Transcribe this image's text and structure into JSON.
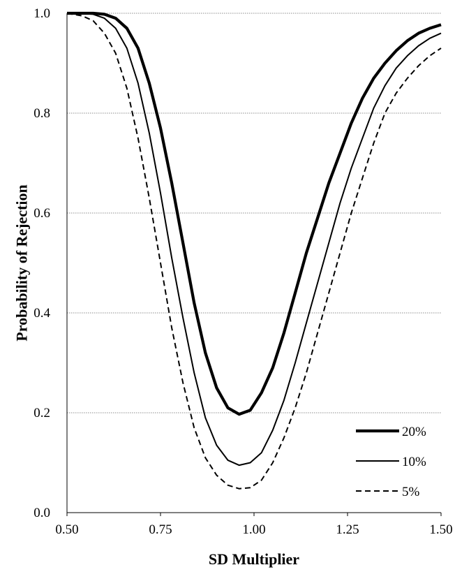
{
  "chart_data": {
    "type": "line",
    "title": "",
    "xlabel": "SD Multiplier",
    "ylabel": "Probability of Rejection",
    "xlim": [
      0.5,
      1.5
    ],
    "ylim": [
      0.0,
      1.0
    ],
    "x_ticks": [
      "0.50",
      "0.75",
      "1.00",
      "1.25",
      "1.50"
    ],
    "y_ticks": [
      "0.0",
      "0.2",
      "0.4",
      "0.6",
      "0.8",
      "1.0"
    ],
    "grid": "horizontal dotted",
    "legend_position": "bottom-right",
    "x": [
      0.5,
      0.54,
      0.57,
      0.6,
      0.63,
      0.66,
      0.69,
      0.72,
      0.75,
      0.78,
      0.81,
      0.84,
      0.87,
      0.9,
      0.93,
      0.96,
      0.99,
      1.02,
      1.05,
      1.08,
      1.11,
      1.14,
      1.17,
      1.2,
      1.23,
      1.26,
      1.29,
      1.32,
      1.35,
      1.38,
      1.41,
      1.44,
      1.47,
      1.5
    ],
    "series": [
      {
        "name": "20%",
        "style": "thick-solid",
        "values": [
          1.0,
          1.0,
          1.0,
          0.998,
          0.99,
          0.97,
          0.93,
          0.86,
          0.77,
          0.66,
          0.54,
          0.42,
          0.32,
          0.25,
          0.21,
          0.197,
          0.205,
          0.24,
          0.29,
          0.36,
          0.44,
          0.52,
          0.59,
          0.66,
          0.72,
          0.78,
          0.83,
          0.87,
          0.9,
          0.925,
          0.945,
          0.96,
          0.97,
          0.977
        ]
      },
      {
        "name": "10%",
        "style": "thin-solid",
        "values": [
          1.0,
          1.0,
          0.998,
          0.99,
          0.97,
          0.93,
          0.86,
          0.76,
          0.64,
          0.51,
          0.39,
          0.28,
          0.19,
          0.135,
          0.105,
          0.095,
          0.1,
          0.12,
          0.165,
          0.225,
          0.3,
          0.38,
          0.46,
          0.54,
          0.62,
          0.69,
          0.75,
          0.81,
          0.855,
          0.89,
          0.915,
          0.935,
          0.95,
          0.96
        ]
      },
      {
        "name": "5%",
        "style": "dashed",
        "values": [
          1.0,
          0.995,
          0.985,
          0.96,
          0.92,
          0.85,
          0.75,
          0.63,
          0.5,
          0.37,
          0.26,
          0.17,
          0.11,
          0.075,
          0.055,
          0.048,
          0.05,
          0.065,
          0.1,
          0.15,
          0.21,
          0.28,
          0.36,
          0.44,
          0.52,
          0.6,
          0.67,
          0.74,
          0.8,
          0.84,
          0.87,
          0.895,
          0.915,
          0.93
        ]
      }
    ]
  }
}
